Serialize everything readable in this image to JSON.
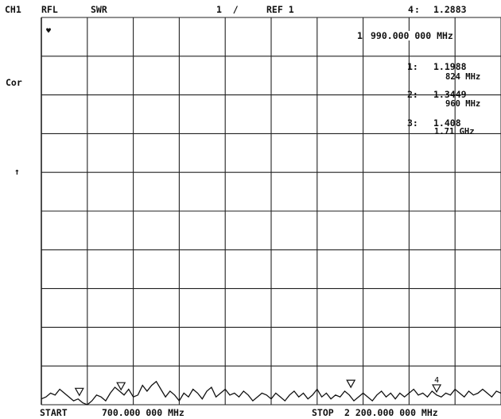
{
  "header": {
    "channel": "CH1",
    "mode": "RFL",
    "format": "SWR",
    "scale": "1  /",
    "ref": "REF 1",
    "active_marker": {
      "number": "4",
      "label": ":",
      "value": "1.2883"
    }
  },
  "side_labels": {
    "cor": "Cor",
    "ref_arrow": "↑",
    "top_marker_glyph": "♥"
  },
  "marker_freq_box": {
    "index": "1",
    "value": "990.000 000 MHz"
  },
  "marker_list": [
    {
      "id": "1:",
      "value": "1.1988",
      "freq": "824 MHz"
    },
    {
      "id": "2:",
      "value": "1.3449",
      "freq": "960 MHz"
    },
    {
      "id": "3:",
      "value": "1.408",
      "freq": "1.71 GHz"
    }
  ],
  "footer": {
    "start_label": "START",
    "start_value": "700.000 000 MHz",
    "stop_label": "STOP",
    "stop_value": "2 200.000 000 MHz"
  },
  "chart_data": {
    "type": "line",
    "title": "",
    "xlabel": "",
    "ylabel": "SWR",
    "x_unit": "MHz",
    "xlim": [
      700,
      2200
    ],
    "ylim": [
      1,
      11
    ],
    "grid": true,
    "grid_divisions": {
      "x": 10,
      "y": 10
    },
    "series": [
      {
        "x": [
          700,
          715,
          730,
          745,
          760,
          775,
          790,
          805,
          820,
          835,
          850,
          865,
          880,
          895,
          910,
          925,
          940,
          955,
          970,
          985,
          1000,
          1015,
          1030,
          1045,
          1060,
          1075,
          1090,
          1105,
          1120,
          1135,
          1150,
          1165,
          1180,
          1195,
          1210,
          1225,
          1240,
          1255,
          1270,
          1285,
          1300,
          1315,
          1330,
          1345,
          1360,
          1375,
          1390,
          1405,
          1420,
          1435,
          1450,
          1465,
          1480,
          1495,
          1510,
          1525,
          1540,
          1555,
          1570,
          1585,
          1600,
          1615,
          1630,
          1645,
          1660,
          1675,
          1690,
          1705,
          1720,
          1735,
          1750,
          1765,
          1780,
          1795,
          1810,
          1825,
          1840,
          1855,
          1870,
          1885,
          1900,
          1915,
          1930,
          1945,
          1960,
          1975,
          1990,
          2005,
          2020,
          2035,
          2050,
          2065,
          2080,
          2095,
          2110,
          2125,
          2140,
          2155,
          2170,
          2185,
          2200
        ],
        "y": [
          1.15,
          1.2,
          1.3,
          1.25,
          1.4,
          1.3,
          1.2,
          1.1,
          1.15,
          1.05,
          1.0,
          1.1,
          1.25,
          1.2,
          1.1,
          1.3,
          1.45,
          1.35,
          1.25,
          1.4,
          1.2,
          1.25,
          1.5,
          1.35,
          1.5,
          1.6,
          1.4,
          1.2,
          1.35,
          1.25,
          1.1,
          1.3,
          1.2,
          1.4,
          1.3,
          1.15,
          1.35,
          1.45,
          1.2,
          1.3,
          1.4,
          1.25,
          1.3,
          1.2,
          1.35,
          1.25,
          1.1,
          1.2,
          1.3,
          1.25,
          1.15,
          1.3,
          1.2,
          1.1,
          1.25,
          1.35,
          1.2,
          1.3,
          1.15,
          1.25,
          1.4,
          1.2,
          1.3,
          1.15,
          1.25,
          1.2,
          1.35,
          1.25,
          1.1,
          1.2,
          1.3,
          1.2,
          1.1,
          1.25,
          1.35,
          1.2,
          1.3,
          1.15,
          1.3,
          1.2,
          1.3,
          1.4,
          1.25,
          1.3,
          1.2,
          1.35,
          1.25,
          1.2,
          1.3,
          1.25,
          1.4,
          1.3,
          1.2,
          1.35,
          1.25,
          1.3,
          1.4,
          1.3,
          1.2,
          1.35,
          1.3
        ]
      }
    ],
    "markers": [
      {
        "n": 1,
        "x": 824,
        "y": 1.1988
      },
      {
        "n": 2,
        "x": 960,
        "y": 1.3449
      },
      {
        "n": 3,
        "x": 1710,
        "y": 1.408
      },
      {
        "n": 4,
        "x": 1990,
        "y": 1.2883
      }
    ]
  }
}
